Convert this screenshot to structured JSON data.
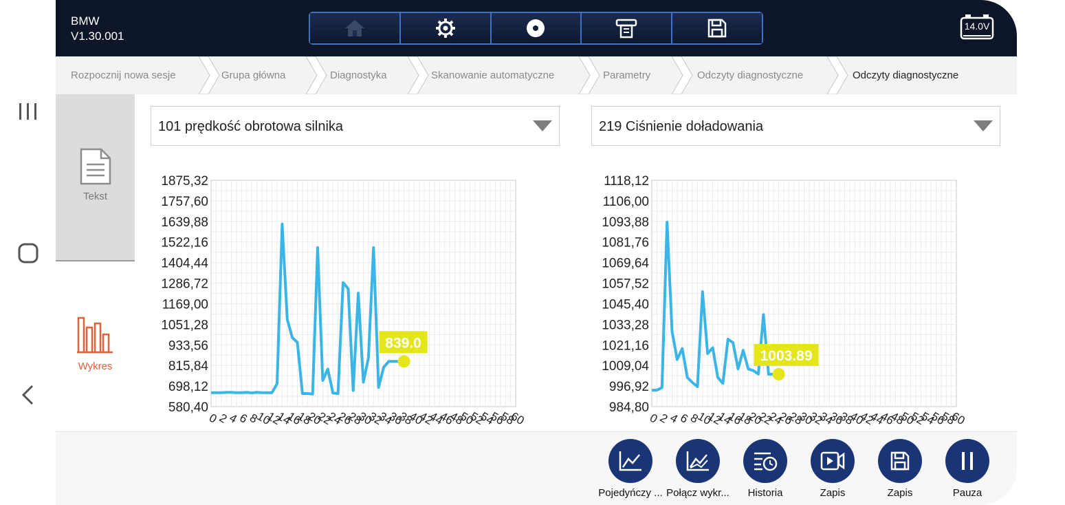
{
  "header": {
    "brand": "BMW",
    "version": "V1.30.001",
    "toolbar": [
      {
        "icon": "home-icon"
      },
      {
        "icon": "gear-icon"
      },
      {
        "icon": "disc-icon"
      },
      {
        "icon": "printer-icon"
      },
      {
        "icon": "floppy-icon"
      }
    ],
    "battery": "14.0V"
  },
  "breadcrumb": [
    "Rozpocznij nowa sesje",
    "Grupa główna",
    "Diagnostyka",
    "Skanowanie automatyczne",
    "Parametry",
    "Odczyty diagnostyczne",
    "Odczyty diagnostyczne"
  ],
  "side_tabs": {
    "text": "Tekst",
    "chart": "Wykres"
  },
  "dropdowns": {
    "left": "101 prędkość obrotowa silnika",
    "right": "219 Ciśnienie doładowania"
  },
  "chart_data": [
    {
      "type": "line",
      "yticks": [
        "1875,32",
        "1757,60",
        "1639,88",
        "1522,16",
        "1404,44",
        "1286,72",
        "1169,00",
        "1051,28",
        "933,56",
        "815,84",
        "698,12",
        "580,40"
      ],
      "ylim": [
        580.4,
        1875.32
      ],
      "xlim": [
        0,
        60
      ],
      "xticks": [
        0,
        2,
        4,
        6,
        8,
        10,
        12,
        14,
        16,
        18,
        20,
        22,
        24,
        26,
        28,
        30,
        32,
        34,
        36,
        38,
        40,
        42,
        44,
        46,
        48,
        50,
        52,
        54,
        56,
        58,
        60
      ],
      "x": [
        0,
        1,
        2,
        3,
        4,
        5,
        6,
        7,
        8,
        9,
        10,
        11,
        12,
        13,
        14,
        15,
        16,
        17,
        18,
        19,
        20,
        21,
        22,
        23,
        24,
        25,
        26,
        27,
        28,
        29,
        30,
        31,
        32,
        33,
        34,
        35,
        36,
        37,
        38
      ],
      "values": [
        660,
        660,
        660,
        662,
        662,
        660,
        660,
        662,
        659,
        662,
        660,
        660,
        660,
        712,
        1625,
        1080,
        975,
        948,
        655,
        655,
        652,
        1490,
        730,
        795,
        658,
        655,
        1290,
        1255,
        672,
        1230,
        720,
        860,
        1490,
        690,
        805,
        839,
        839,
        839,
        839
      ],
      "current_label": "839.0",
      "series_color": "#3bb5e6"
    },
    {
      "type": "line",
      "yticks": [
        "1118,12",
        "1106,00",
        "1093,88",
        "1081,76",
        "1069,64",
        "1057,52",
        "1045,40",
        "1033,28",
        "1021,16",
        "1009,04",
        "996,92",
        "984,80"
      ],
      "ylim": [
        984.8,
        1118.12
      ],
      "xlim": [
        0,
        60
      ],
      "xticks": [
        0,
        2,
        4,
        6,
        8,
        10,
        12,
        14,
        16,
        18,
        20,
        22,
        24,
        26,
        28,
        30,
        32,
        34,
        36,
        38,
        40,
        42,
        44,
        46,
        48,
        50,
        52,
        54,
        56,
        58,
        60
      ],
      "x": [
        0,
        1,
        2,
        3,
        4,
        5,
        6,
        7,
        8,
        9,
        10,
        11,
        12,
        13,
        14,
        15,
        16,
        17,
        18,
        19,
        20,
        21,
        22,
        23,
        24,
        25
      ],
      "values": [
        994.5,
        994.5,
        996,
        1093.5,
        1029,
        1012.5,
        1019,
        1002,
        999,
        996.5,
        1052.5,
        1016,
        1019.5,
        1002,
        998.5,
        1024.5,
        1022.5,
        1007,
        1018,
        1007,
        1006,
        1004,
        1039,
        1003.89,
        1003.89,
        1003.89
      ],
      "current_label": "1003.89",
      "series_color": "#3bb5e6"
    }
  ],
  "actions": [
    {
      "label": "Pojedyńczy ...",
      "icon": "single-chart-icon"
    },
    {
      "label": "Połącz wykr...",
      "icon": "merge-chart-icon"
    },
    {
      "label": "Historia",
      "icon": "history-icon"
    },
    {
      "label": "Zapis",
      "icon": "video-record-icon"
    },
    {
      "label": "Zapis",
      "icon": "save-icon"
    },
    {
      "label": "Pauza",
      "icon": "pause-icon"
    }
  ]
}
